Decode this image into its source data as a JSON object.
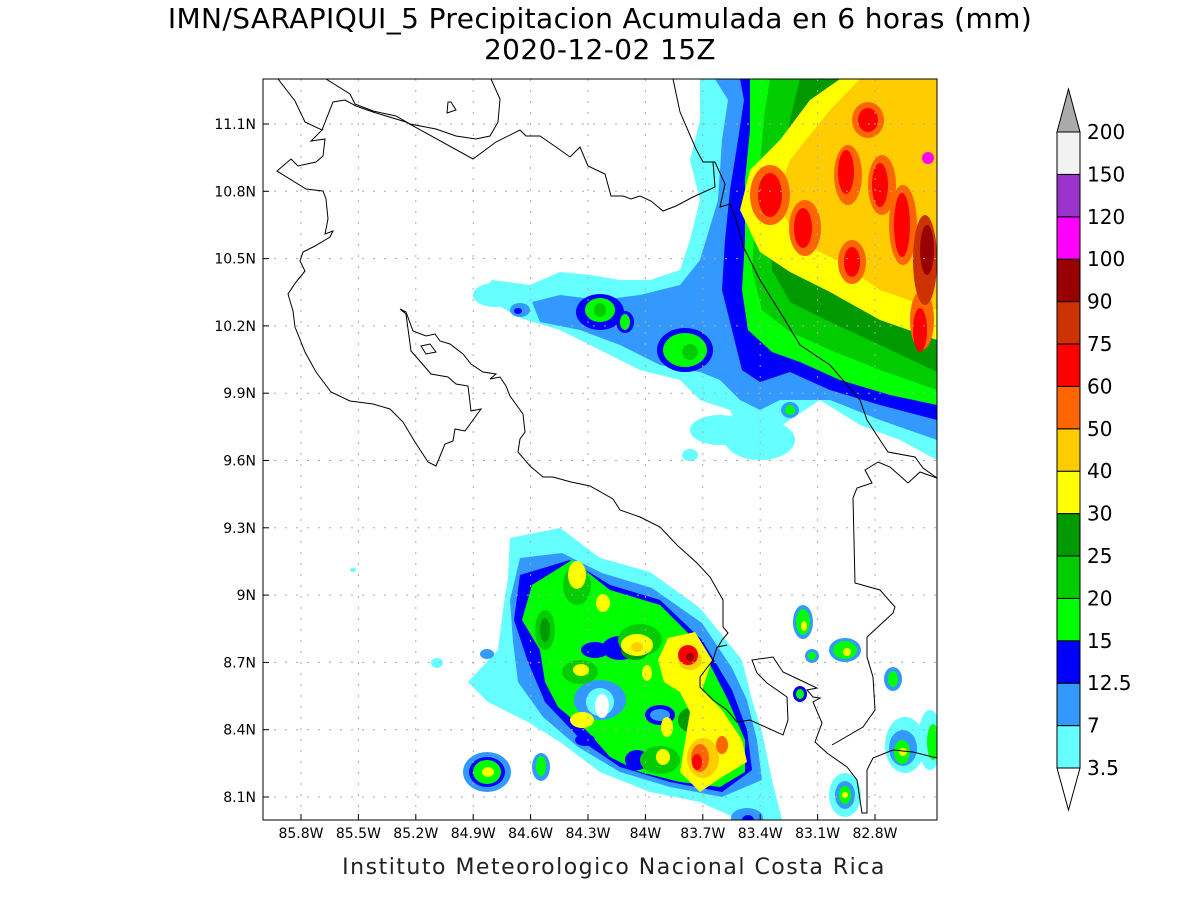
{
  "title": "IMN/SARAPIQUI_5 Precipitacion Acumulada en 6 horas (mm)",
  "subtitle": "2020-12-02 15Z",
  "footer": "Instituto Meteorologico Nacional Costa Rica",
  "map": {
    "lat_ticks": [
      "11.1N",
      "10.8N",
      "10.5N",
      "10.2N",
      "9.9N",
      "9.6N",
      "9.3N",
      "9N",
      "8.7N",
      "8.4N",
      "8.1N"
    ],
    "lon_ticks": [
      "85.8W",
      "85.5W",
      "85.2W",
      "84.9W",
      "84.6W",
      "84.3W",
      "84W",
      "83.7W",
      "83.4W",
      "83.1W",
      "82.8W"
    ],
    "grid": "dotted",
    "coastlines": true
  },
  "colorbar": {
    "labels": [
      "3.5",
      "7",
      "12.5",
      "15",
      "20",
      "25",
      "30",
      "40",
      "50",
      "60",
      "75",
      "90",
      "100",
      "120",
      "150",
      "200"
    ],
    "colors": [
      "#66ffff",
      "#3399ff",
      "#0000ff",
      "#00ff00",
      "#00cc00",
      "#009900",
      "#ffff00",
      "#ffcc00",
      "#ff6600",
      "#ff0000",
      "#cc3300",
      "#990000",
      "#ff00ff",
      "#9933cc",
      "#f2f2f2"
    ],
    "over_color": "#aaaaaa",
    "under_color": "#ffffff"
  }
}
